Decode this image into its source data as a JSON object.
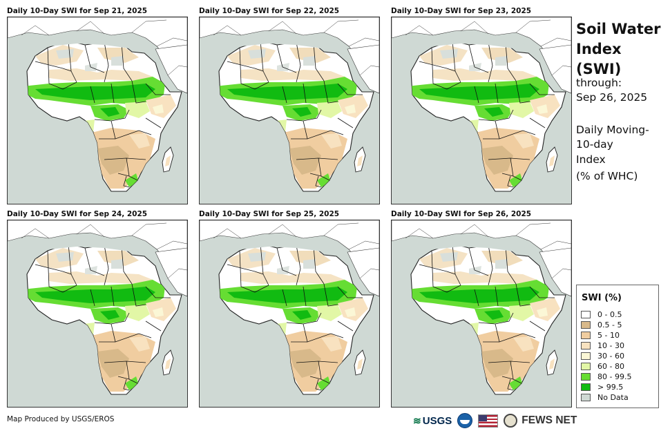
{
  "panels": [
    {
      "title": "Daily 10-Day SWI for Sep 21, 2025"
    },
    {
      "title": "Daily 10-Day SWI for Sep 22, 2025"
    },
    {
      "title": "Daily 10-Day SWI for Sep 23, 2025"
    },
    {
      "title": "Daily 10-Day SWI for Sep 24, 2025"
    },
    {
      "title": "Daily 10-Day SWI for Sep 25, 2025"
    },
    {
      "title": "Daily 10-Day SWI for Sep 26, 2025"
    }
  ],
  "sidebar": {
    "title_line1": "Soil Water",
    "title_line2": "Index (SWI)",
    "through_label": "through:",
    "through_date": "Sep 26, 2025",
    "desc_line1": "Daily Moving-",
    "desc_line2": "10-day",
    "desc_line3": "Index",
    "desc_line4": "(% of WHC)"
  },
  "legend": {
    "title": "SWI (%)",
    "items": [
      {
        "label": "0 - 0.5",
        "color": "#ffffff"
      },
      {
        "label": "0.5 - 5",
        "color": "#d8b98a"
      },
      {
        "label": "5 - 10",
        "color": "#f0cda0"
      },
      {
        "label": "10 - 30",
        "color": "#f8e2c0"
      },
      {
        "label": "30 - 60",
        "color": "#fbf7d6"
      },
      {
        "label": "60 - 80",
        "color": "#e2f7a6"
      },
      {
        "label": "80 - 99.5",
        "color": "#66dd33"
      },
      {
        "label": "> 99.5",
        "color": "#11bb11"
      },
      {
        "label": "No Data",
        "color": "#cfd9d4"
      }
    ]
  },
  "footer": {
    "credit": "Map Produced by USGS/EROS",
    "usgs_label": "USGS",
    "fews_label": "FEWS NET"
  }
}
